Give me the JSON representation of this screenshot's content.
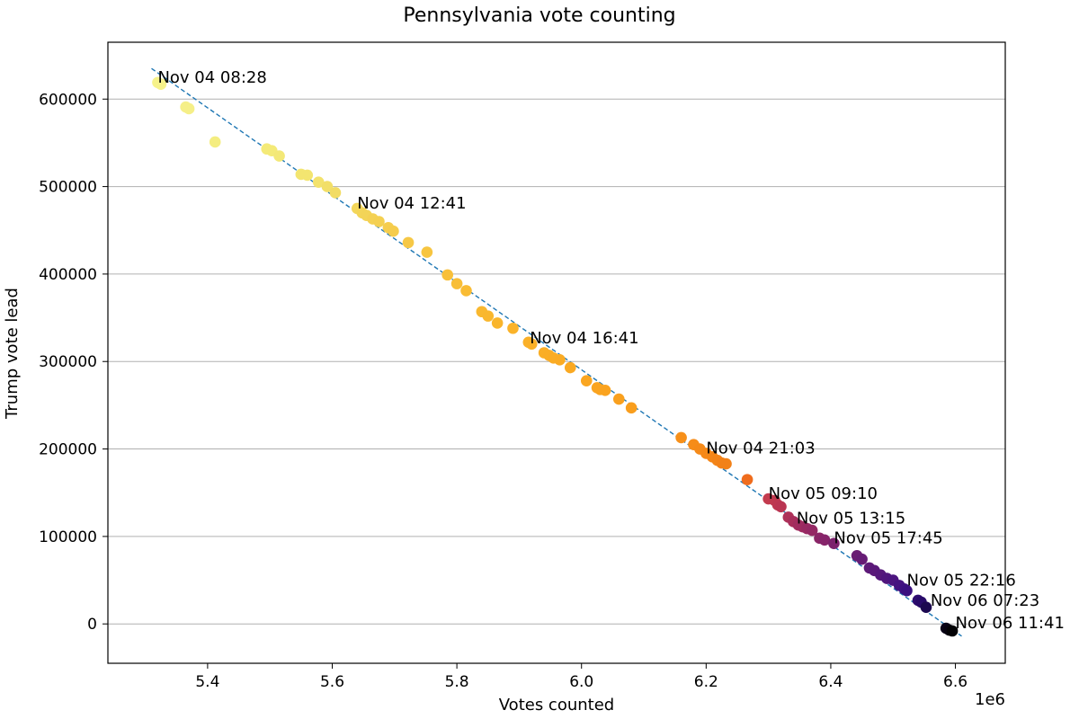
{
  "chart_data": {
    "type": "scatter",
    "title": "Pennsylvania vote counting",
    "xlabel": "Votes counted",
    "ylabel": "Trump vote lead",
    "x_scale_label": "1e6",
    "xlim": [
      5.24,
      6.68
    ],
    "ylim": [
      -45000,
      665000
    ],
    "x_ticks": [
      5.4,
      5.6,
      5.8,
      6.0,
      6.2,
      6.4,
      6.6
    ],
    "x_tick_labels": [
      "5.4",
      "5.6",
      "5.8",
      "6.0",
      "6.2",
      "6.4",
      "6.6"
    ],
    "y_ticks": [
      0,
      100000,
      200000,
      300000,
      400000,
      500000,
      600000
    ],
    "y_tick_labels": [
      "0",
      "100000",
      "200000",
      "300000",
      "400000",
      "500000",
      "600000"
    ],
    "grid": "y",
    "trend_line": {
      "x": [
        5.31,
        6.61
      ],
      "y": [
        635000,
        -14000
      ],
      "color": "#1f77b4"
    },
    "points": [
      {
        "x": 5.32,
        "y": 619000,
        "color": "#f6f28a"
      },
      {
        "x": 5.325,
        "y": 617000,
        "color": "#f6f28a"
      },
      {
        "x": 5.365,
        "y": 591000,
        "color": "#f5ef88"
      },
      {
        "x": 5.37,
        "y": 589000,
        "color": "#f5ef88"
      },
      {
        "x": 5.412,
        "y": 551000,
        "color": "#f4ed80"
      },
      {
        "x": 5.495,
        "y": 543000,
        "color": "#f4ea78"
      },
      {
        "x": 5.503,
        "y": 541000,
        "color": "#f4ea78"
      },
      {
        "x": 5.515,
        "y": 535000,
        "color": "#f3e877"
      },
      {
        "x": 5.55,
        "y": 514000,
        "color": "#f3e570"
      },
      {
        "x": 5.56,
        "y": 513000,
        "color": "#f3e570"
      },
      {
        "x": 5.578,
        "y": 505000,
        "color": "#f3e26c"
      },
      {
        "x": 5.592,
        "y": 500000,
        "color": "#f2df68"
      },
      {
        "x": 5.605,
        "y": 493000,
        "color": "#f2dc64"
      },
      {
        "x": 5.64,
        "y": 475000,
        "color": "#f3d65a"
      },
      {
        "x": 5.648,
        "y": 470000,
        "color": "#f3d558"
      },
      {
        "x": 5.655,
        "y": 467000,
        "color": "#f3d457"
      },
      {
        "x": 5.665,
        "y": 463000,
        "color": "#f4d154"
      },
      {
        "x": 5.675,
        "y": 460000,
        "color": "#f4d052"
      },
      {
        "x": 5.69,
        "y": 453000,
        "color": "#f5cd4e"
      },
      {
        "x": 5.698,
        "y": 449000,
        "color": "#f5cc4c"
      },
      {
        "x": 5.722,
        "y": 436000,
        "color": "#f6c846"
      },
      {
        "x": 5.752,
        "y": 425000,
        "color": "#f7c540"
      },
      {
        "x": 5.785,
        "y": 399000,
        "color": "#f8c03a"
      },
      {
        "x": 5.8,
        "y": 389000,
        "color": "#f8be37"
      },
      {
        "x": 5.815,
        "y": 381000,
        "color": "#f9bc34"
      },
      {
        "x": 5.84,
        "y": 357000,
        "color": "#f9b82f"
      },
      {
        "x": 5.85,
        "y": 352000,
        "color": "#f9b72e"
      },
      {
        "x": 5.865,
        "y": 344000,
        "color": "#f9b52c"
      },
      {
        "x": 5.89,
        "y": 338000,
        "color": "#fab32a"
      },
      {
        "x": 5.915,
        "y": 322000,
        "color": "#fab028"
      },
      {
        "x": 5.92,
        "y": 320000,
        "color": "#fab028"
      },
      {
        "x": 5.94,
        "y": 310000,
        "color": "#faae26"
      },
      {
        "x": 5.948,
        "y": 307000,
        "color": "#faad25"
      },
      {
        "x": 5.955,
        "y": 304000,
        "color": "#faac24"
      },
      {
        "x": 5.965,
        "y": 302000,
        "color": "#faab24"
      },
      {
        "x": 5.982,
        "y": 293000,
        "color": "#faa922"
      },
      {
        "x": 6.008,
        "y": 278000,
        "color": "#faa621"
      },
      {
        "x": 6.025,
        "y": 270000,
        "color": "#faa420"
      },
      {
        "x": 6.03,
        "y": 268000,
        "color": "#faa420"
      },
      {
        "x": 6.038,
        "y": 267000,
        "color": "#faa31f"
      },
      {
        "x": 6.06,
        "y": 257000,
        "color": "#f9a01e"
      },
      {
        "x": 6.08,
        "y": 247000,
        "color": "#f99e1d"
      },
      {
        "x": 6.16,
        "y": 213000,
        "color": "#f7901a"
      },
      {
        "x": 6.18,
        "y": 205000,
        "color": "#f68c19"
      },
      {
        "x": 6.19,
        "y": 200000,
        "color": "#f58a19"
      },
      {
        "x": 6.2,
        "y": 195000,
        "color": "#f58818"
      },
      {
        "x": 6.21,
        "y": 191000,
        "color": "#f48618"
      },
      {
        "x": 6.218,
        "y": 187000,
        "color": "#f38418"
      },
      {
        "x": 6.225,
        "y": 184000,
        "color": "#f38218"
      },
      {
        "x": 6.232,
        "y": 183000,
        "color": "#f28118"
      },
      {
        "x": 6.266,
        "y": 165000,
        "color": "#ef6c1d"
      },
      {
        "x": 6.3,
        "y": 143000,
        "color": "#c33b4e"
      },
      {
        "x": 6.31,
        "y": 141000,
        "color": "#c0394f"
      },
      {
        "x": 6.315,
        "y": 136000,
        "color": "#bd3751"
      },
      {
        "x": 6.32,
        "y": 134000,
        "color": "#ba3552"
      },
      {
        "x": 6.332,
        "y": 122000,
        "color": "#ae3158"
      },
      {
        "x": 6.34,
        "y": 117000,
        "color": "#a82e5b"
      },
      {
        "x": 6.348,
        "y": 113000,
        "color": "#a22c5e"
      },
      {
        "x": 6.355,
        "y": 111000,
        "color": "#9e2b60"
      },
      {
        "x": 6.362,
        "y": 109000,
        "color": "#982962"
      },
      {
        "x": 6.37,
        "y": 107000,
        "color": "#942864"
      },
      {
        "x": 6.382,
        "y": 98000,
        "color": "#8a2567"
      },
      {
        "x": 6.39,
        "y": 96000,
        "color": "#86246a"
      },
      {
        "x": 6.405,
        "y": 92000,
        "color": "#7c226d"
      },
      {
        "x": 6.442,
        "y": 78000,
        "color": "#6a1d73"
      },
      {
        "x": 6.45,
        "y": 74000,
        "color": "#661c75"
      },
      {
        "x": 6.462,
        "y": 64000,
        "color": "#5e1a78"
      },
      {
        "x": 6.47,
        "y": 61000,
        "color": "#5a1979"
      },
      {
        "x": 6.48,
        "y": 56000,
        "color": "#56187b"
      },
      {
        "x": 6.49,
        "y": 52000,
        "color": "#50167d"
      },
      {
        "x": 6.5,
        "y": 50000,
        "color": "#4c157f"
      },
      {
        "x": 6.51,
        "y": 44000,
        "color": "#451380"
      },
      {
        "x": 6.518,
        "y": 40000,
        "color": "#3f1181"
      },
      {
        "x": 6.522,
        "y": 38000,
        "color": "#3a1080"
      },
      {
        "x": 6.54,
        "y": 27000,
        "color": "#2e0c70"
      },
      {
        "x": 6.545,
        "y": 25000,
        "color": "#280a69"
      },
      {
        "x": 6.553,
        "y": 19000,
        "color": "#1c0850"
      },
      {
        "x": 6.585,
        "y": -5000,
        "color": "#0a0318"
      },
      {
        "x": 6.59,
        "y": -7000,
        "color": "#060210"
      },
      {
        "x": 6.595,
        "y": -8000,
        "color": "#020104"
      }
    ],
    "annotations": [
      {
        "text": "Nov 04 08:28",
        "x": 5.32,
        "y": 619000
      },
      {
        "text": "Nov 04 12:41",
        "x": 5.64,
        "y": 475000
      },
      {
        "text": "Nov 04 16:41",
        "x": 5.917,
        "y": 321000
      },
      {
        "text": "Nov 04 21:03",
        "x": 6.2,
        "y": 195000
      },
      {
        "text": "Nov 05 09:10",
        "x": 6.3,
        "y": 143000
      },
      {
        "text": "Nov 05 13:15",
        "x": 6.345,
        "y": 115000
      },
      {
        "text": "Nov 05 17:45",
        "x": 6.405,
        "y": 92000
      },
      {
        "text": "Nov 05 22:16",
        "x": 6.522,
        "y": 44000
      },
      {
        "text": "Nov 06 07:23",
        "x": 6.56,
        "y": 21000
      },
      {
        "text": "Nov 06 11:41",
        "x": 6.6,
        "y": -5000
      }
    ]
  }
}
